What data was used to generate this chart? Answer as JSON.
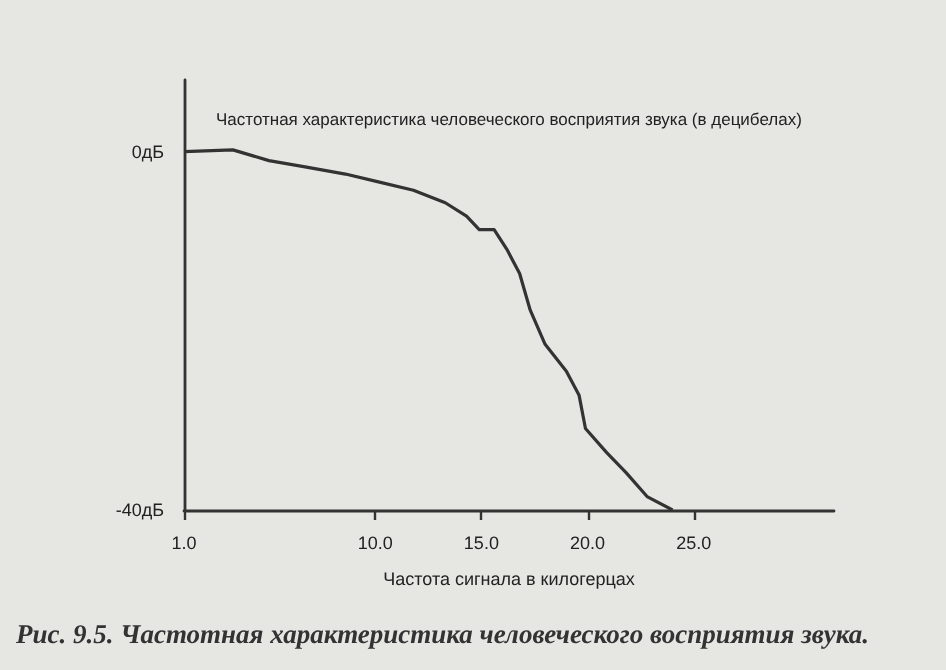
{
  "chart_data": {
    "type": "line",
    "title": "Частотная характеристика человеческого восприятия звука (в децибелах)",
    "xlabel": "Частота сигнала в килогерцах",
    "annotations": [
      "Рис. 9.5. Частотная характеристика человеческого восприятия звука."
    ],
    "x": [
      1,
      3.3,
      5.0,
      6.7,
      8.6,
      10.2,
      11.8,
      13.3,
      14.3,
      14.9,
      15.6,
      16.2,
      16.8,
      17.3,
      18.0,
      19.0,
      19.6,
      19.9,
      20.9,
      21.8,
      22.8,
      24.0
    ],
    "series": [
      {
        "color": "#333333",
        "values": [
          0,
          0.2,
          -1.0,
          -1.7,
          -2.5,
          -3.4,
          -4.3,
          -5.7,
          -7.2,
          -8.7,
          -8.7,
          -10.9,
          -13.6,
          -17.7,
          -21.5,
          -24.5,
          -27.2,
          -30.9,
          -33.6,
          -35.8,
          -38.5,
          -40
        ]
      }
    ],
    "xlim": [
      1,
      31.6
    ],
    "xticks": [
      {
        "value": 1,
        "label": "1.0"
      },
      {
        "value": 10,
        "label": "10.0"
      },
      {
        "value": 15,
        "label": "15.0"
      },
      {
        "value": 20,
        "label": "20.0"
      },
      {
        "value": 25,
        "label": "25.0"
      }
    ],
    "ylim": [
      -40,
      8
    ],
    "yticks": [
      {
        "value": 0,
        "label": "0дБ"
      },
      {
        "value": -40,
        "label": "-40дБ"
      }
    ],
    "grid": false,
    "marker": "none",
    "line_style": "solid"
  }
}
